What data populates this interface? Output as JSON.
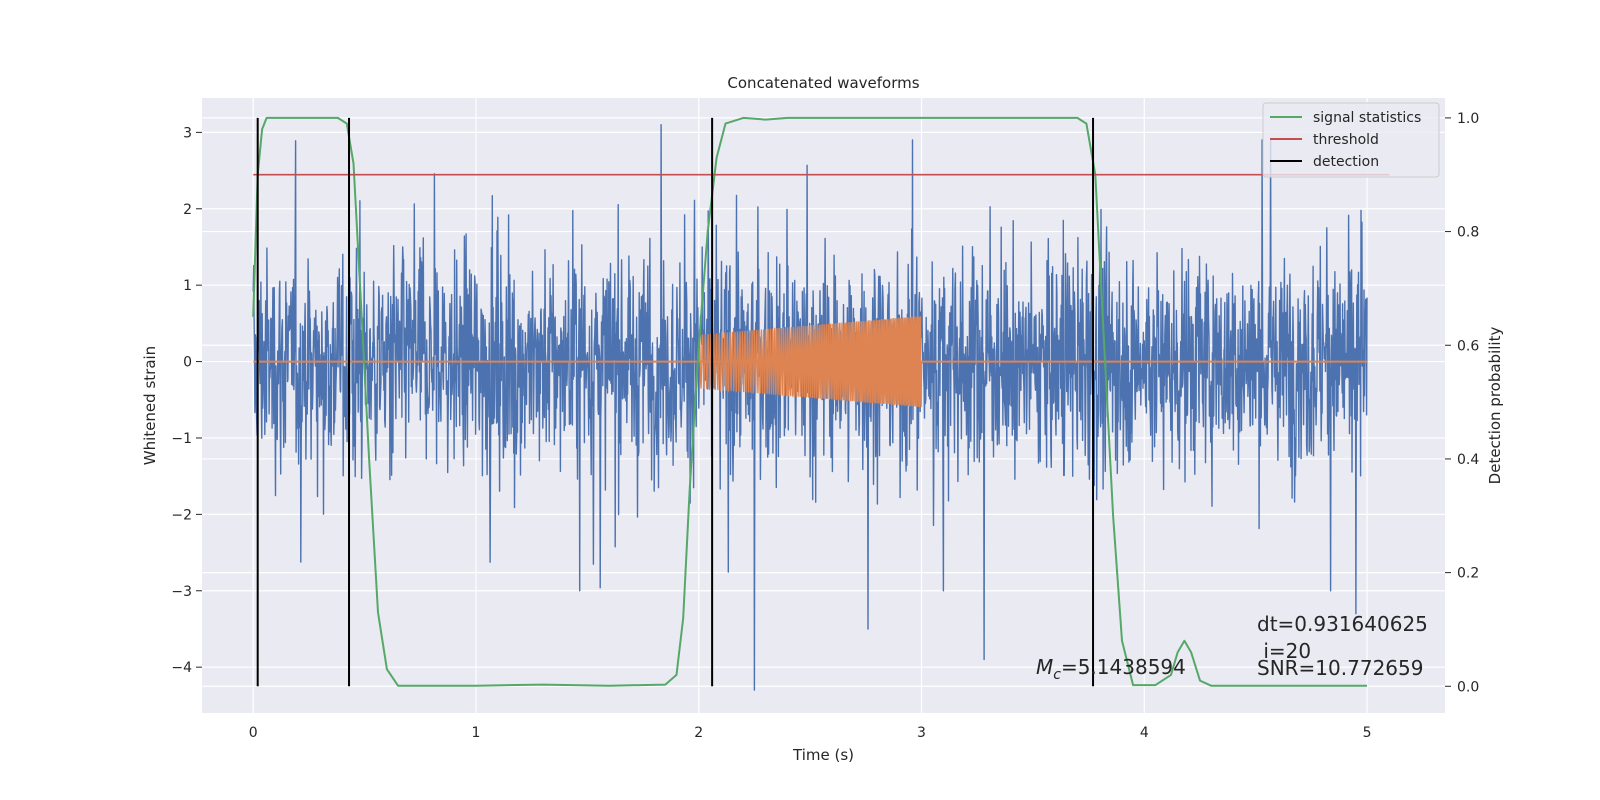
{
  "chart_data": {
    "type": "line",
    "title": "Concatenated waveforms",
    "xlabel": "Time (s)",
    "ylabel": "Whitened strain",
    "y2label": "Detection probability",
    "xlim": [
      -0.23,
      5.35
    ],
    "ylim": [
      -4.6,
      3.45
    ],
    "y2lim": [
      -0.047,
      1.035
    ],
    "xticks": [
      0,
      1,
      2,
      3,
      4,
      5
    ],
    "yticks": [
      -4,
      -3,
      -2,
      -1,
      0,
      1,
      2,
      3
    ],
    "y2ticks": [
      0.0,
      0.2,
      0.4,
      0.6,
      0.8,
      1.0
    ],
    "grid": true,
    "legend_position": "top-right",
    "colors": {
      "background": "#eaeaf2",
      "strain": "#4c72b0",
      "template": "#dd8452",
      "signal": "#55a868",
      "threshold": "#c44e52",
      "detection": "#000000"
    },
    "legend": [
      "signal statistics",
      "threshold",
      "detection"
    ],
    "series": [
      {
        "name": "signal statistics",
        "axis": "right",
        "x": [
          0.0,
          0.02,
          0.04,
          0.06,
          0.1,
          0.38,
          0.42,
          0.45,
          0.48,
          0.52,
          0.56,
          0.6,
          0.65,
          1.0,
          1.3,
          1.6,
          1.85,
          1.9,
          1.93,
          1.96,
          2.0,
          2.04,
          2.08,
          2.12,
          2.2,
          2.3,
          2.4,
          3.7,
          3.74,
          3.78,
          3.82,
          3.86,
          3.9,
          3.95,
          4.05,
          4.12,
          4.15,
          4.18,
          4.21,
          4.25,
          4.3,
          5.0
        ],
        "y": [
          0.65,
          0.9,
          0.98,
          1.0,
          1.0,
          1.0,
          0.99,
          0.92,
          0.7,
          0.4,
          0.13,
          0.03,
          0.001,
          0.001,
          0.003,
          0.001,
          0.003,
          0.02,
          0.12,
          0.35,
          0.6,
          0.8,
          0.93,
          0.99,
          1.0,
          0.997,
          1.0,
          1.0,
          0.99,
          0.9,
          0.6,
          0.3,
          0.08,
          0.002,
          0.002,
          0.02,
          0.06,
          0.08,
          0.06,
          0.01,
          0.001,
          0.001
        ]
      },
      {
        "name": "threshold",
        "axis": "right",
        "x": [
          0.0,
          5.1
        ],
        "y": [
          0.9,
          0.9
        ]
      }
    ],
    "detections": [
      0.02,
      0.43,
      2.06,
      3.77
    ],
    "strain": {
      "x_range": [
        0.0,
        5.0
      ],
      "amplitude_typical": 1.0,
      "peaks": [
        {
          "x": 1.83,
          "y": 3.1
        },
        {
          "x": 2.25,
          "y": -4.3
        },
        {
          "x": 4.95,
          "y": -3.3
        },
        {
          "x": 2.76,
          "y": -3.5
        },
        {
          "x": 3.28,
          "y": -3.9
        }
      ]
    },
    "template": {
      "x_range": [
        2.0,
        3.0
      ],
      "amplitude_start": 0.35,
      "amplitude_end": 0.6,
      "flat_baseline": 0.0
    },
    "annotations": {
      "mc_prefix": "M",
      "mc_sub": "c",
      "mc_value": "=5.1438594",
      "dt": "dt=0.931640625",
      "i": " i=20",
      "snr": "SNR=10.772659"
    }
  }
}
